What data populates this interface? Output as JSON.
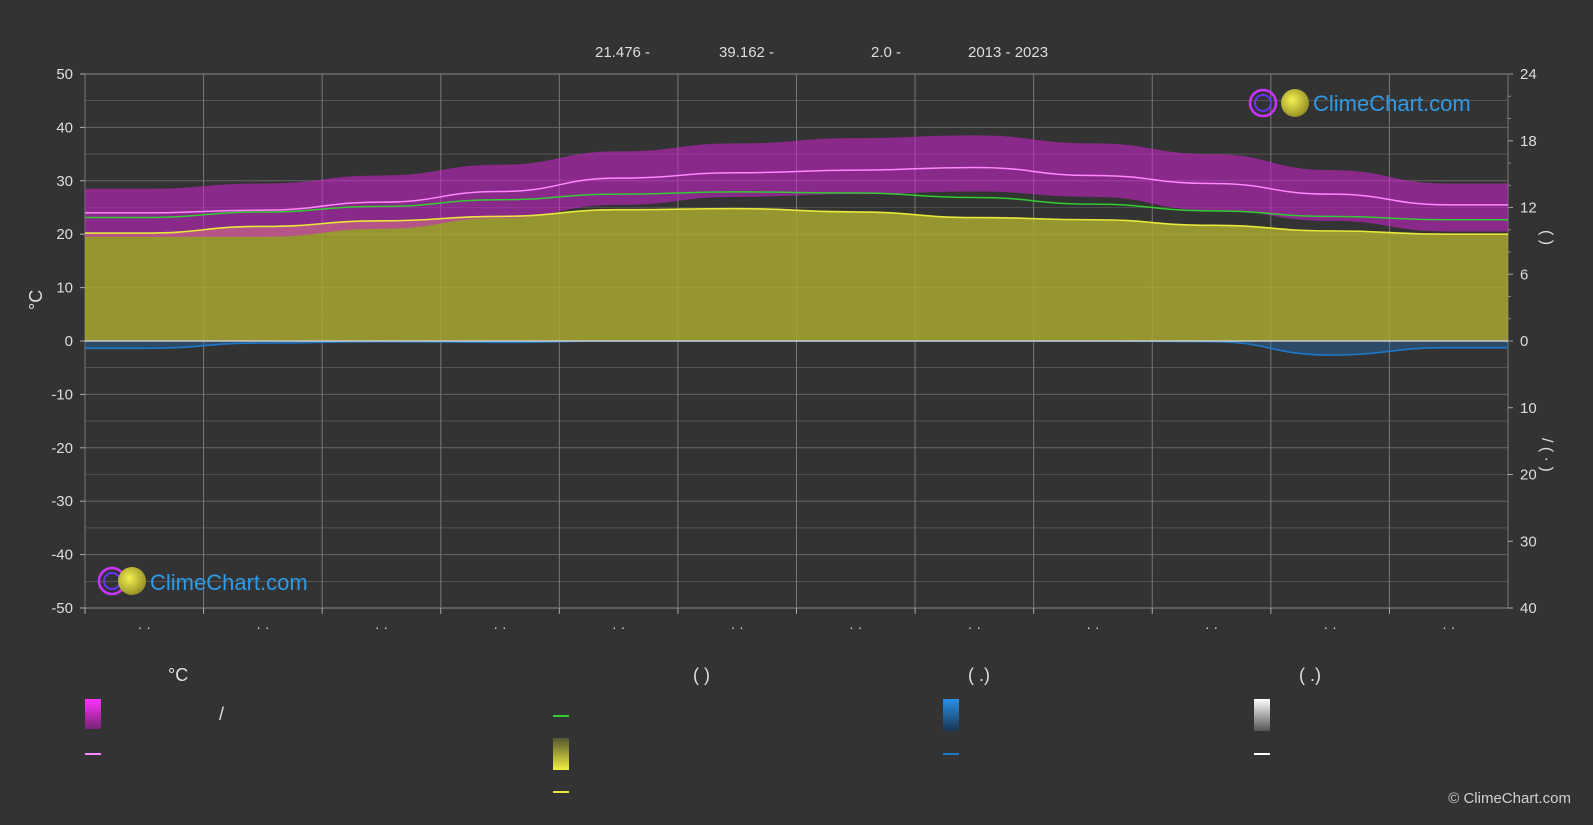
{
  "header": {
    "lat": "21.476 -",
    "lon": "39.162 -",
    "elev": "2.0 -",
    "years": "2013 - 2023"
  },
  "axes": {
    "left_unit": "°C",
    "right_top_bracket": "(     )",
    "right_bottom_bracket": "/   (  ·  )"
  },
  "legend": {
    "temp_title": "°C",
    "sun_title": "(            )",
    "rain_title": "(    .)",
    "snow_title": "(    .)",
    "slash": "/"
  },
  "logo_text": "ClimeChart.com",
  "copyright": "© ClimeChart.com",
  "colors": {
    "background": "#333333",
    "grid": "#666666",
    "temp_range": "#d020d0",
    "temp_mean": "#ff88ff",
    "daylight": "#33cc33",
    "sunshine_fill": "#a8a830",
    "sunshine_line": "#e8e83a",
    "rain": "#1e78c8",
    "snow": "#ffffff",
    "logo_text": "#2e9be8"
  },
  "chart_data": {
    "type": "area",
    "x_ticks": [
      "· ·",
      "· ·",
      "· ·",
      "· ·",
      "· ·",
      "· ·",
      "· ·",
      "· ·",
      "· ·",
      "· ·",
      "· ·",
      "· ·"
    ],
    "left_axis": {
      "unit": "°C",
      "ylim": [
        -50,
        50
      ],
      "ticks": [
        50,
        40,
        30,
        20,
        10,
        0,
        -10,
        -20,
        -30,
        -40,
        -50
      ]
    },
    "right_axis_top": {
      "ylim": [
        0,
        24
      ],
      "ticks": [
        24,
        18,
        12,
        6,
        0
      ]
    },
    "right_axis_bottom": {
      "ylim": [
        0,
        40
      ],
      "ticks": [
        0,
        10,
        20,
        30,
        40
      ]
    },
    "grid": true,
    "months_x": [
      0.5,
      1.5,
      2.5,
      3.5,
      4.5,
      5.5,
      6.5,
      7.5,
      8.5,
      9.5,
      10.5,
      11.5
    ],
    "series": [
      {
        "key": "temp_max",
        "values": [
          28.5,
          29.5,
          31,
          33,
          35.5,
          37,
          38,
          38.5,
          37,
          35,
          32,
          29.5
        ]
      },
      {
        "key": "temp_min",
        "values": [
          19.5,
          19.5,
          21,
          23,
          25.5,
          27,
          27.5,
          28,
          27,
          24.5,
          22.5,
          20.5
        ]
      },
      {
        "key": "temp_mean",
        "values": [
          24,
          24.5,
          26,
          28,
          30.5,
          31.5,
          32,
          32.5,
          31,
          29.5,
          27.5,
          25.5
        ]
      },
      {
        "key": "daylight",
        "values": [
          11.1,
          11.6,
          12.1,
          12.7,
          13.2,
          13.4,
          13.3,
          12.9,
          12.3,
          11.7,
          11.2,
          10.9
        ]
      },
      {
        "key": "sunshine",
        "values": [
          9.7,
          10.3,
          10.8,
          11.2,
          11.8,
          11.9,
          11.6,
          11.1,
          10.9,
          10.4,
          9.9,
          9.6
        ]
      },
      {
        "key": "rain_avg",
        "values": [
          1.1,
          0.3,
          0.1,
          0.2,
          0.0,
          0.0,
          0.0,
          0.0,
          0.0,
          0.1,
          2.1,
          1.0
        ]
      }
    ]
  }
}
